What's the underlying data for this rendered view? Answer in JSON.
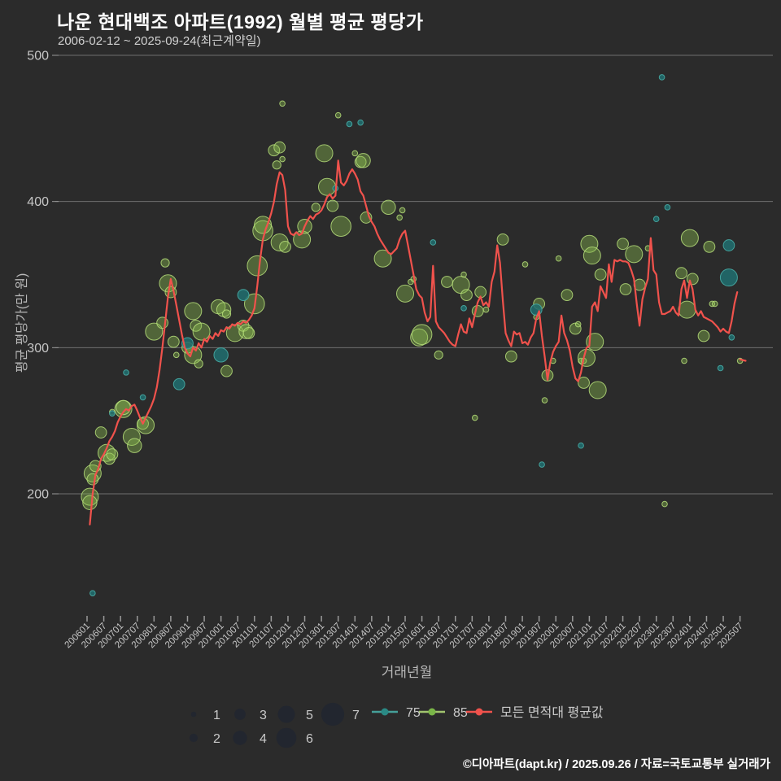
{
  "title": "나운 현대백조 아파트(1992) 월별 평균 평당가",
  "subtitle": "2006-02-12 ~ 2025-09-24(최근계약일)",
  "footer": "©디아파트(dapt.kr) / 2025.09.26 / 자료=국토교통부 실거래가",
  "colors": {
    "background": "#2b2b2b",
    "avg_line": "#f0524c",
    "green_fill": "rgba(141,190,80,0.40)",
    "green_stroke": "rgba(182,222,122,0.85)",
    "teal_fill": "rgba(32,110,112,0.85)",
    "teal_stroke": "rgba(72,172,165,0.9)",
    "grid": "rgba(168,168,168,0.55)",
    "tick_text": "#c6c6c6",
    "legend_text": "#c9c9c9",
    "legend_circle": "#22262f"
  },
  "chart_data": {
    "type": "scatter",
    "title": "나운 현대백조 아파트(1992) 월별 평균 평당가",
    "xlabel": "거래년월",
    "ylabel": "평균 평당가(만 원)",
    "yticks": [
      200,
      300,
      400,
      500
    ],
    "ylim": [
      120,
      510
    ],
    "grid": true,
    "legend_position": "bottom",
    "xticks": [
      "200601",
      "200607",
      "200701",
      "200707",
      "200801",
      "200807",
      "200901",
      "200907",
      "201001",
      "201007",
      "201101",
      "201107",
      "201201",
      "201207",
      "201301",
      "201307",
      "201401",
      "201407",
      "201501",
      "201507",
      "201601",
      "201607",
      "201701",
      "201707",
      "201801",
      "201807",
      "201901",
      "201907",
      "202001",
      "202007",
      "202101",
      "202107",
      "202201",
      "202207",
      "202301",
      "202307",
      "202401",
      "202407",
      "202501",
      "202507"
    ],
    "size_legend": {
      "row1": [
        1,
        3,
        5,
        7
      ],
      "row2": [
        2,
        4,
        6
      ]
    },
    "series": [
      {
        "name": "모든 면적대 평균값",
        "type": "line",
        "start": "200602",
        "values": [
          179,
          200,
          213,
          217,
          224,
          227,
          231,
          236,
          239,
          243,
          249,
          253,
          256,
          258,
          257,
          260,
          261,
          257,
          252,
          248,
          252,
          256,
          260,
          265,
          273,
          285,
          300,
          317,
          335,
          347,
          339,
          329,
          319,
          309,
          300,
          296,
          294,
          300,
          298,
          303,
          300,
          306,
          304,
          308,
          306,
          310,
          308,
          312,
          311,
          314,
          313,
          316,
          315,
          317,
          316,
          318,
          317,
          319,
          322,
          327,
          342,
          360,
          374,
          381,
          386,
          392,
          400,
          412,
          420,
          418,
          408,
          383,
          378,
          377,
          379,
          377,
          378,
          383,
          387,
          390,
          388,
          391,
          392,
          394,
          398,
          403,
          405,
          402,
          404,
          428,
          413,
          411,
          414,
          419,
          422,
          419,
          415,
          407,
          404,
          397,
          390,
          386,
          383,
          378,
          374,
          371,
          368,
          365,
          364,
          366,
          368,
          374,
          378,
          380,
          370,
          360,
          350,
          340,
          336,
          334,
          324,
          318,
          321,
          356,
          318,
          314,
          312,
          310,
          307,
          304,
          302,
          301,
          309,
          316,
          311,
          310,
          320,
          314,
          323,
          331,
          335,
          329,
          331,
          328,
          345,
          352,
          370,
          358,
          332,
          310,
          305,
          301,
          311,
          309,
          310,
          303,
          304,
          302,
          307,
          310,
          320,
          325,
          308,
          294,
          278,
          290,
          297,
          301,
          304,
          322,
          310,
          305,
          298,
          287,
          279,
          277,
          283,
          293,
          300,
          301,
          328,
          331,
          325,
          342,
          338,
          334,
          357,
          345,
          360,
          359,
          360,
          359,
          359,
          358,
          353,
          347,
          330,
          315,
          333,
          341,
          347,
          375,
          353,
          350,
          331,
          323,
          323,
          324,
          325,
          328,
          324,
          322,
          340,
          346,
          334,
          346,
          340,
          326,
          322,
          325,
          321,
          320,
          319,
          318,
          316,
          314,
          311,
          313,
          311,
          310,
          318,
          330,
          338
        ],
        "detached": [
          [
            "202507",
            292
          ],
          [
            "202509",
            291
          ]
        ]
      },
      {
        "name": "85",
        "type": "bubble",
        "points": [
          [
            "200602",
            198,
            5
          ],
          [
            "200602",
            194,
            4
          ],
          [
            "200603",
            214,
            5
          ],
          [
            "200603",
            210,
            3
          ],
          [
            "200604",
            219,
            3
          ],
          [
            "200606",
            242,
            3
          ],
          [
            "200608",
            228,
            5
          ],
          [
            "200609",
            224,
            3
          ],
          [
            "200610",
            227,
            3
          ],
          [
            "200610",
            256,
            1
          ],
          [
            "200702",
            258,
            5
          ],
          [
            "200702",
            259,
            4
          ],
          [
            "200705",
            239,
            5
          ],
          [
            "200706",
            233,
            4
          ],
          [
            "200709",
            248,
            3
          ],
          [
            "200710",
            247,
            5
          ],
          [
            "200801",
            311,
            5
          ],
          [
            "200804",
            317,
            3
          ],
          [
            "200805",
            358,
            2
          ],
          [
            "200806",
            344,
            5
          ],
          [
            "200807",
            338,
            3
          ],
          [
            "200808",
            304,
            3
          ],
          [
            "200809",
            295,
            1
          ],
          [
            "200901",
            300,
            3
          ],
          [
            "200903",
            325,
            5
          ],
          [
            "200903",
            295,
            5
          ],
          [
            "200904",
            315,
            3
          ],
          [
            "200905",
            289,
            2
          ],
          [
            "200906",
            311,
            5
          ],
          [
            "200912",
            328,
            4
          ],
          [
            "201002",
            326,
            4
          ],
          [
            "201003",
            284,
            3
          ],
          [
            "201003",
            323,
            2
          ],
          [
            "201006",
            310,
            5
          ],
          [
            "201009",
            315,
            3
          ],
          [
            "201010",
            311,
            4
          ],
          [
            "201011",
            310,
            3
          ],
          [
            "201101",
            330,
            6
          ],
          [
            "201102",
            356,
            6
          ],
          [
            "201104",
            380,
            6
          ],
          [
            "201104",
            384,
            5
          ],
          [
            "201108",
            435,
            3
          ],
          [
            "201109",
            425,
            2
          ],
          [
            "201110",
            372,
            5
          ],
          [
            "201110",
            437,
            3
          ],
          [
            "201111",
            467,
            1
          ],
          [
            "201111",
            429,
            1
          ],
          [
            "201112",
            369,
            3
          ],
          [
            "201206",
            374,
            5
          ],
          [
            "201207",
            383,
            4
          ],
          [
            "201211",
            396,
            2
          ],
          [
            "201302",
            433,
            5
          ],
          [
            "201303",
            410,
            5
          ],
          [
            "201305",
            397,
            3
          ],
          [
            "201307",
            459,
            1
          ],
          [
            "201308",
            383,
            6
          ],
          [
            "201401",
            433,
            1
          ],
          [
            "201403",
            427,
            3
          ],
          [
            "201404",
            428,
            4
          ],
          [
            "201405",
            389,
            3
          ],
          [
            "201411",
            361,
            5
          ],
          [
            "201501",
            396,
            4
          ],
          [
            "201505",
            389,
            1
          ],
          [
            "201506",
            394,
            1
          ],
          [
            "201507",
            337,
            5
          ],
          [
            "201509",
            345,
            1
          ],
          [
            "201510",
            347,
            1
          ],
          [
            "201512",
            307,
            5
          ],
          [
            "201601",
            309,
            6
          ],
          [
            "201607",
            295,
            2
          ],
          [
            "201610",
            345,
            3
          ],
          [
            "201703",
            343,
            5
          ],
          [
            "201704",
            350,
            1
          ],
          [
            "201705",
            336,
            3
          ],
          [
            "201708",
            252,
            1
          ],
          [
            "201709",
            325,
            3
          ],
          [
            "201710",
            338,
            3
          ],
          [
            "201712",
            326,
            1
          ],
          [
            "201806",
            374,
            3
          ],
          [
            "201809",
            294,
            3
          ],
          [
            "201902",
            357,
            1
          ],
          [
            "201906",
            321,
            1
          ],
          [
            "201907",
            330,
            3
          ],
          [
            "201909",
            264,
            1
          ],
          [
            "201910",
            281,
            3
          ],
          [
            "201912",
            291,
            1
          ],
          [
            "202002",
            361,
            1
          ],
          [
            "202005",
            336,
            3
          ],
          [
            "202008",
            313,
            3
          ],
          [
            "202009",
            316,
            1
          ],
          [
            "202010",
            291,
            1
          ],
          [
            "202011",
            291,
            1
          ],
          [
            "202011",
            276,
            3
          ],
          [
            "202012",
            293,
            5
          ],
          [
            "202101",
            371,
            5
          ],
          [
            "202102",
            363,
            5
          ],
          [
            "202103",
            304,
            5
          ],
          [
            "202104",
            271,
            5
          ],
          [
            "202105",
            350,
            3
          ],
          [
            "202201",
            371,
            3
          ],
          [
            "202202",
            340,
            3
          ],
          [
            "202205",
            364,
            5
          ],
          [
            "202207",
            343,
            3
          ],
          [
            "202210",
            368,
            1
          ],
          [
            "202304",
            193,
            1
          ],
          [
            "202310",
            351,
            3
          ],
          [
            "202311",
            291,
            1
          ],
          [
            "202312",
            326,
            5
          ],
          [
            "202401",
            375,
            5
          ],
          [
            "202402",
            347,
            3
          ],
          [
            "202406",
            308,
            3
          ],
          [
            "202408",
            369,
            3
          ],
          [
            "202409",
            330,
            1
          ],
          [
            "202410",
            330,
            1
          ],
          [
            "202507",
            291,
            1
          ]
        ]
      },
      {
        "name": "75",
        "type": "bubble",
        "points": [
          [
            "200603",
            132,
            1
          ],
          [
            "200610",
            255,
            1
          ],
          [
            "200703",
            283,
            1
          ],
          [
            "200709",
            266,
            1
          ],
          [
            "200810",
            275,
            3
          ],
          [
            "200901",
            303,
            3
          ],
          [
            "201001",
            295,
            4
          ],
          [
            "201009",
            336,
            3
          ],
          [
            "201306",
            409,
            1
          ],
          [
            "201311",
            453,
            1
          ],
          [
            "201403",
            454,
            1
          ],
          [
            "201605",
            372,
            1
          ],
          [
            "201704",
            327,
            1
          ],
          [
            "201906",
            326,
            3
          ],
          [
            "201908",
            220,
            1
          ],
          [
            "202010",
            233,
            1
          ],
          [
            "202301",
            388,
            1
          ],
          [
            "202303",
            485,
            1
          ],
          [
            "202305",
            396,
            1
          ],
          [
            "202412",
            286,
            1
          ],
          [
            "202503",
            348,
            5
          ],
          [
            "202503",
            370,
            3
          ],
          [
            "202504",
            307,
            1
          ]
        ]
      }
    ]
  }
}
